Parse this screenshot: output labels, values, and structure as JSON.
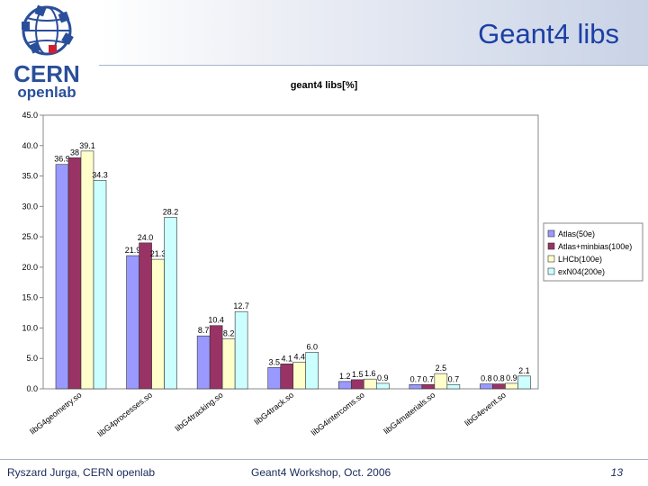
{
  "slide": {
    "title": "Geant4 libs",
    "logo_text_1": "CERN",
    "logo_text_2": "openlab",
    "footer_left": "Ryszard Jurga, CERN openlab",
    "footer_center": "Geant4 Workshop, Oct. 2006",
    "page_number": "13"
  },
  "colors": {
    "accent": "#1c3fa6",
    "logo_red": "#d02030",
    "logo_blue": "#2a4f9a"
  },
  "chart_data": {
    "type": "bar",
    "title": "geant4 libs[%]",
    "xlabel": "",
    "ylabel": "",
    "ylim": [
      0,
      45
    ],
    "yticks": [
      "0.0",
      "5.0",
      "10.0",
      "15.0",
      "20.0",
      "25.0",
      "30.0",
      "35.0",
      "40.0",
      "45.0"
    ],
    "grid": false,
    "legend_position": "right",
    "categories": [
      "libG4geometry.so",
      "libG4processes.so",
      "libG4tracking.so",
      "libG4track.so",
      "libG4intercoms.so",
      "libG4materials.so",
      "libG4event.so"
    ],
    "series": [
      {
        "name": "Atlas(50e)",
        "color": "#9a99ff",
        "values": [
          36.9,
          21.9,
          8.7,
          3.5,
          1.2,
          0.7,
          0.8
        ],
        "labels": [
          "36.9",
          "21.9",
          "8.7",
          "3.5",
          "1.2",
          "0.7",
          "0.8"
        ]
      },
      {
        "name": "Atlas+minbias(100e)",
        "color": "#993366",
        "values": [
          38,
          24.0,
          10.4,
          4.1,
          1.5,
          0.7,
          0.8
        ],
        "labels": [
          "38",
          "24.0",
          "10.4",
          "4.1",
          "1.5",
          "0.7",
          "0.8"
        ]
      },
      {
        "name": "LHCb(100e)",
        "color": "#ffffcc",
        "values": [
          39.1,
          21.3,
          8.2,
          4.4,
          1.6,
          2.5,
          0.9
        ],
        "labels": [
          "39.1",
          "21.3",
          "8.2",
          "4.4",
          "1.6",
          "2.5",
          "0.9"
        ]
      },
      {
        "name": "exN04(200e)",
        "color": "#ccffff",
        "values": [
          34.3,
          28.2,
          12.7,
          6.0,
          0.9,
          0.7,
          2.1
        ],
        "labels": [
          "34.3",
          "28.2",
          "12.7",
          "6.0",
          "0.9",
          "0.7",
          "2.1"
        ]
      }
    ]
  }
}
